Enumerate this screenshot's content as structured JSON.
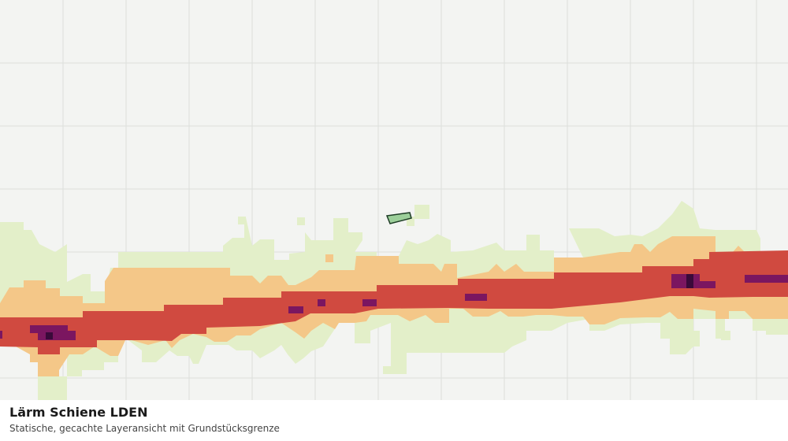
{
  "legend": {
    "title": "Lärm Schiene LDEN",
    "subtitle": "Statische, gecachte Layeransicht mit Grundstücksgrenze"
  }
}
